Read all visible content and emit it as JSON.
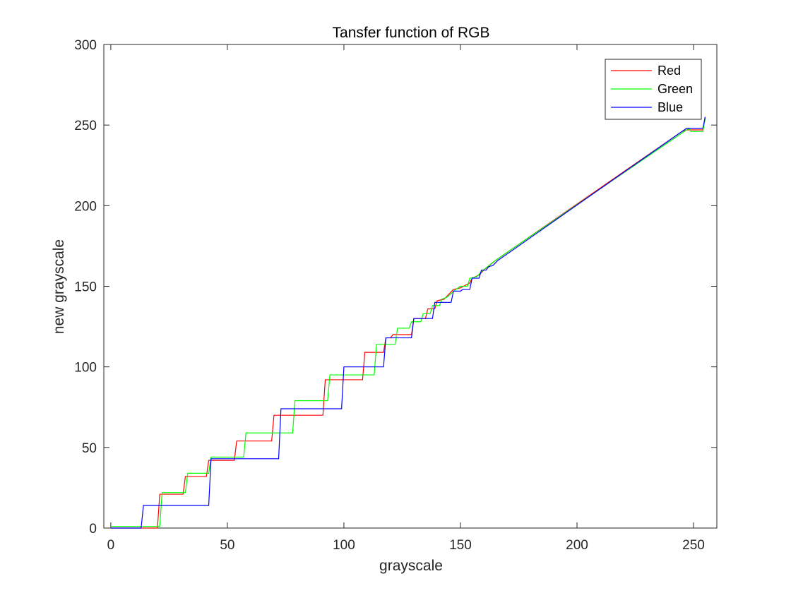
{
  "chart_data": {
    "type": "line",
    "title": "Tansfer function of RGB",
    "xlabel": "grayscale",
    "ylabel": "new grayscale",
    "xlim": [
      -3,
      260
    ],
    "ylim": [
      0,
      300
    ],
    "xticks": [
      0,
      50,
      100,
      150,
      200,
      250
    ],
    "yticks": [
      0,
      50,
      100,
      150,
      200,
      250,
      300
    ],
    "grid": false,
    "legend_position": "top-right",
    "series": [
      {
        "name": "Red",
        "color": "#ff0000",
        "points": [
          [
            0,
            0
          ],
          [
            20,
            0
          ],
          [
            21,
            21
          ],
          [
            31,
            21
          ],
          [
            32,
            32
          ],
          [
            41,
            32
          ],
          [
            42,
            42
          ],
          [
            53,
            42
          ],
          [
            54,
            54
          ],
          [
            69,
            54
          ],
          [
            70,
            70
          ],
          [
            91,
            70
          ],
          [
            92,
            92
          ],
          [
            108,
            92
          ],
          [
            109,
            109
          ],
          [
            117,
            109
          ],
          [
            118,
            118
          ],
          [
            120,
            118
          ],
          [
            121,
            120
          ],
          [
            129,
            120
          ],
          [
            130,
            130
          ],
          [
            135,
            130
          ],
          [
            136,
            136
          ],
          [
            139,
            136
          ],
          [
            140,
            141
          ],
          [
            143,
            142
          ],
          [
            147,
            148
          ],
          [
            150,
            149
          ],
          [
            154,
            152
          ],
          [
            155,
            155
          ],
          [
            158,
            157
          ],
          [
            160,
            160
          ],
          [
            165,
            166
          ],
          [
            172,
            173
          ],
          [
            245,
            246
          ],
          [
            247,
            247
          ],
          [
            254,
            247
          ],
          [
            255,
            255
          ]
        ]
      },
      {
        "name": "Green",
        "color": "#00ff00",
        "points": [
          [
            0,
            1
          ],
          [
            21,
            1
          ],
          [
            22,
            22
          ],
          [
            32,
            22
          ],
          [
            33,
            34
          ],
          [
            42,
            34
          ],
          [
            43,
            44
          ],
          [
            57,
            44
          ],
          [
            58,
            59
          ],
          [
            78,
            59
          ],
          [
            79,
            79
          ],
          [
            93,
            79
          ],
          [
            94,
            95
          ],
          [
            113,
            95
          ],
          [
            114,
            114
          ],
          [
            122,
            114
          ],
          [
            123,
            124
          ],
          [
            128,
            124
          ],
          [
            129,
            128
          ],
          [
            133,
            128
          ],
          [
            134,
            133
          ],
          [
            137,
            133
          ],
          [
            138,
            138
          ],
          [
            141,
            138
          ],
          [
            142,
            142
          ],
          [
            144,
            143
          ],
          [
            148,
            148
          ],
          [
            150,
            150
          ],
          [
            153,
            150
          ],
          [
            154,
            155
          ],
          [
            157,
            156
          ],
          [
            159,
            159
          ],
          [
            164,
            165
          ],
          [
            170,
            171
          ],
          [
            172,
            173
          ],
          [
            248,
            248
          ],
          [
            249,
            246
          ],
          [
            254,
            246
          ],
          [
            255,
            254
          ]
        ]
      },
      {
        "name": "Blue",
        "color": "#0000ff",
        "points": [
          [
            0,
            0
          ],
          [
            13,
            0
          ],
          [
            14,
            14
          ],
          [
            42,
            14
          ],
          [
            43,
            43
          ],
          [
            72,
            43
          ],
          [
            73,
            74
          ],
          [
            99,
            74
          ],
          [
            100,
            100
          ],
          [
            117,
            100
          ],
          [
            118,
            118
          ],
          [
            129,
            118
          ],
          [
            130,
            130
          ],
          [
            138,
            130
          ],
          [
            139,
            140
          ],
          [
            146,
            140
          ],
          [
            147,
            147
          ],
          [
            150,
            147
          ],
          [
            151,
            148
          ],
          [
            154,
            148
          ],
          [
            155,
            155
          ],
          [
            158,
            155
          ],
          [
            159,
            160
          ],
          [
            161,
            160
          ],
          [
            162,
            162
          ],
          [
            164,
            163
          ],
          [
            166,
            166
          ],
          [
            172,
            172
          ],
          [
            247,
            248
          ],
          [
            254,
            248
          ],
          [
            255,
            255
          ]
        ]
      }
    ]
  }
}
